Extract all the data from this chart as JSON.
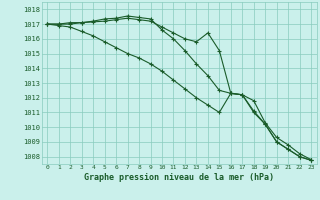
{
  "title": "Graphe pression niveau de la mer (hPa)",
  "bg_color": "#caf0eb",
  "grid_color": "#88ccbe",
  "line_color": "#1a5c2a",
  "xlim": [
    -0.5,
    23.5
  ],
  "ylim": [
    1007.5,
    1018.5
  ],
  "yticks": [
    1008,
    1009,
    1010,
    1011,
    1012,
    1013,
    1014,
    1015,
    1016,
    1017,
    1018
  ],
  "xticks": [
    0,
    1,
    2,
    3,
    4,
    5,
    6,
    7,
    8,
    9,
    10,
    11,
    12,
    13,
    14,
    15,
    16,
    17,
    18,
    19,
    20,
    21,
    22,
    23
  ],
  "series": [
    [
      1017.0,
      1017.0,
      1017.0,
      1017.1,
      1017.2,
      1017.35,
      1017.4,
      1017.55,
      1017.45,
      1017.35,
      1016.6,
      1016.0,
      1015.2,
      1014.3,
      1013.5,
      1012.5,
      1012.3,
      1012.2,
      1011.8,
      1010.3,
      1009.3,
      1008.8,
      1008.2,
      1007.8
    ],
    [
      1017.0,
      1017.0,
      1017.1,
      1017.1,
      1017.15,
      1017.2,
      1017.3,
      1017.4,
      1017.3,
      1017.2,
      1016.8,
      1016.4,
      1016.0,
      1015.8,
      1016.4,
      1015.2,
      1012.3,
      1012.2,
      1011.1,
      1010.2,
      1009.0,
      1008.5,
      1008.0,
      1007.75
    ],
    [
      1017.0,
      1016.9,
      1016.8,
      1016.5,
      1016.2,
      1015.8,
      1015.4,
      1015.0,
      1014.7,
      1014.3,
      1013.8,
      1013.2,
      1012.6,
      1012.0,
      1011.5,
      1011.0,
      1012.3,
      1012.2,
      1011.0,
      1010.2,
      1009.0,
      1008.5,
      1008.0,
      1007.75
    ]
  ]
}
